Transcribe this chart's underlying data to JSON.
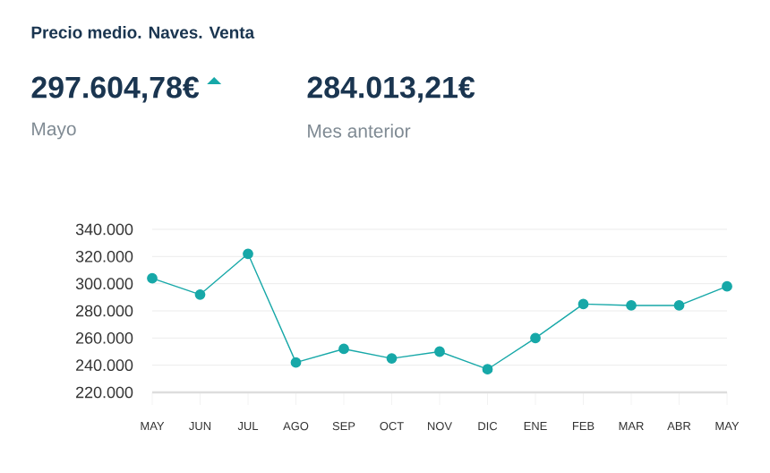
{
  "chart_data": {
    "type": "line",
    "title": "Precio medio. Naves. Venta",
    "annotations": [
      "297.604,78€",
      "Mayo",
      "284.013,21€",
      "Mes anterior"
    ],
    "categories": [
      "MAY",
      "JUN",
      "JUL",
      "AGO",
      "SEP",
      "OCT",
      "NOV",
      "DIC",
      "ENE",
      "FEB",
      "MAR",
      "ABR",
      "MAY"
    ],
    "series": [
      {
        "color": "#17a8a8",
        "values": [
          304000,
          292000,
          322000,
          242000,
          252000,
          245000,
          250000,
          237000,
          260000,
          285000,
          284000,
          284000,
          298000
        ]
      }
    ],
    "ylim": [
      220000,
      340000
    ],
    "yticks": [
      {
        "value": 220000,
        "label": "220.000"
      },
      {
        "value": 240000,
        "label": "240.000"
      },
      {
        "value": 260000,
        "label": "260.000"
      },
      {
        "value": 280000,
        "label": "280.000"
      },
      {
        "value": 300000,
        "label": "300.000"
      },
      {
        "value": 320000,
        "label": "320.000"
      },
      {
        "value": 340000,
        "label": "340.000"
      }
    ],
    "grid": "y",
    "marker": "circle",
    "line_style": "solid"
  }
}
